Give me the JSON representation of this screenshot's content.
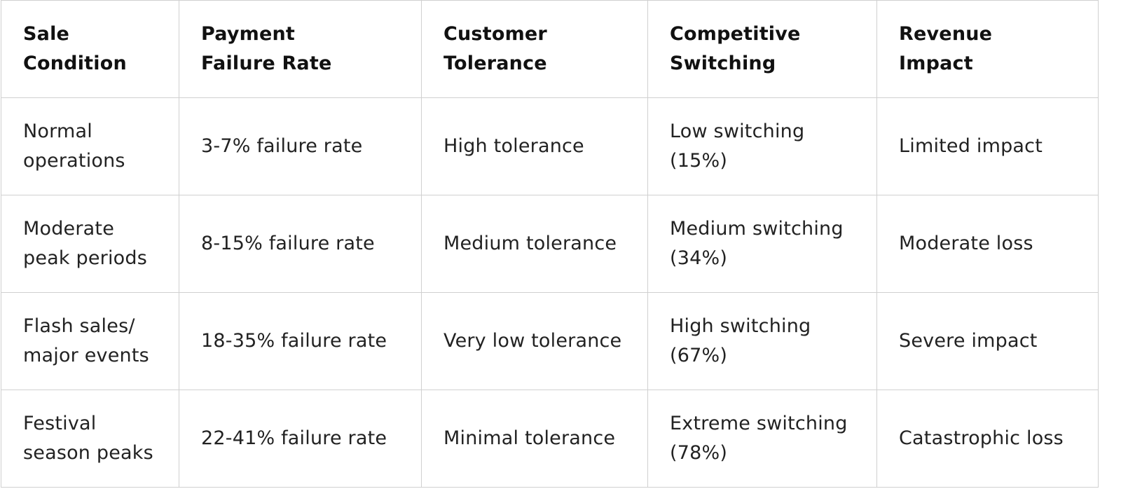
{
  "table": {
    "headers": [
      "Sale Condition",
      "Payment Failure Rate",
      "Customer Tolerance",
      "Competitive Switching",
      "Revenue Impact"
    ],
    "header_lines": [
      [
        "Sale",
        "Condition"
      ],
      [
        "Payment",
        "Failure Rate"
      ],
      [
        "Customer",
        "Tolerance"
      ],
      [
        "Competitive",
        "Switching"
      ],
      [
        "Revenue",
        "Impact"
      ]
    ],
    "rows": [
      {
        "condition": [
          "Normal",
          "operations"
        ],
        "failure_rate": "3-7% failure rate",
        "tolerance": "High tolerance",
        "switching": [
          "Low switching",
          "(15%)"
        ],
        "impact": "Limited impact"
      },
      {
        "condition": [
          "Moderate",
          "peak periods"
        ],
        "failure_rate": "8-15% failure rate",
        "tolerance": "Medium tolerance",
        "switching": [
          "Medium switching",
          "(34%)"
        ],
        "impact": "Moderate loss"
      },
      {
        "condition": [
          "Flash sales/",
          "major events"
        ],
        "failure_rate": "18-35% failure rate",
        "tolerance": "Very low tolerance",
        "switching": [
          "High switching",
          "(67%)"
        ],
        "impact": "Severe impact"
      },
      {
        "condition": [
          "Festival",
          "season peaks"
        ],
        "failure_rate": "22-41% failure rate",
        "tolerance": "Minimal tolerance",
        "switching": [
          "Extreme switching",
          "(78%)"
        ],
        "impact": "Catastrophic loss"
      }
    ]
  },
  "colors": {
    "border": "#d0d0d0",
    "text": "#222222",
    "header_text": "#111111",
    "background": "#ffffff"
  }
}
